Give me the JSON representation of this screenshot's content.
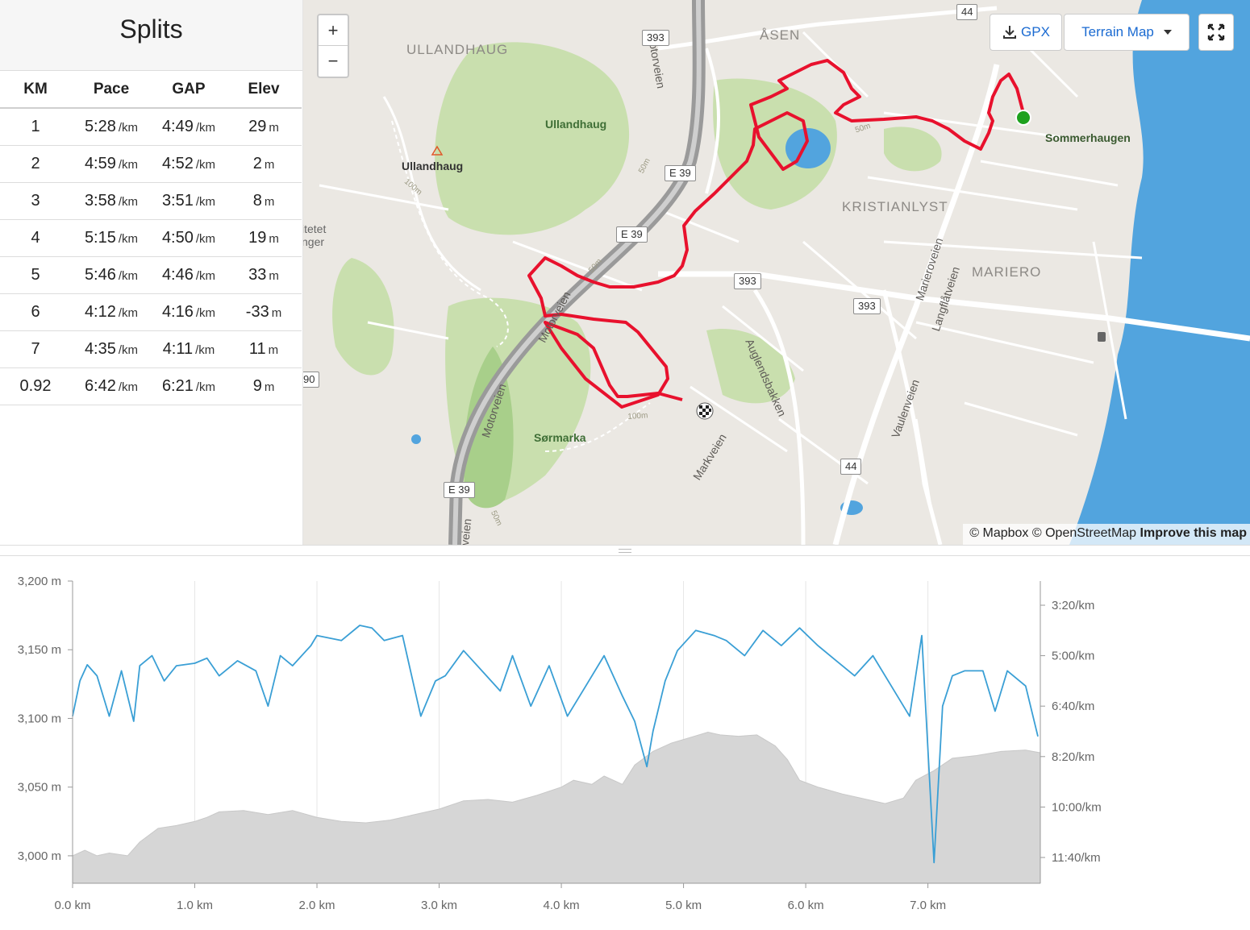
{
  "splits": {
    "title": "Splits",
    "headers": [
      "KM",
      "Pace",
      "GAP",
      "Elev"
    ],
    "rows": [
      {
        "km": "1",
        "pace": "5:28",
        "gap": "4:49",
        "elev": "29"
      },
      {
        "km": "2",
        "pace": "4:59",
        "gap": "4:52",
        "elev": "2"
      },
      {
        "km": "3",
        "pace": "3:58",
        "gap": "3:51",
        "elev": "8"
      },
      {
        "km": "4",
        "pace": "5:15",
        "gap": "4:50",
        "elev": "19"
      },
      {
        "km": "5",
        "pace": "5:46",
        "gap": "4:46",
        "elev": "33"
      },
      {
        "km": "6",
        "pace": "4:12",
        "gap": "4:16",
        "elev": "-33"
      },
      {
        "km": "7",
        "pace": "4:35",
        "gap": "4:11",
        "elev": "11"
      },
      {
        "km": "0.92",
        "pace": "6:42",
        "gap": "6:21",
        "elev": "9"
      }
    ],
    "pace_unit": "/km",
    "elev_unit": "m"
  },
  "map": {
    "zoom_in": "+",
    "zoom_out": "−",
    "gpx_label": "GPX",
    "style_label": "Terrain Map",
    "fullscreen_icon": "fullscreen-icon",
    "download_icon": "download-icon",
    "labels": {
      "ullandhaug_area": "ULLANDHAUG",
      "asen": "ÅSEN",
      "kristianlyst": "KRISTIANLYST",
      "mariero": "MARIERO",
      "ullandhaug_park": "Ullandhaug",
      "ullandhaug_peak": "Ullandhaug",
      "sormarka": "Sørmarka",
      "sommerhaugen": "Sommerhaugen",
      "motorveien1": "Motorveien",
      "motorveien2": "Motorveien",
      "motorveien3": "Motorveien",
      "auglendsbakken": "Auglendsbakken",
      "markveien": "Markveien",
      "marieroveien": "Marieroveien",
      "langflatveien": "Langflåtveien",
      "vaulenveien": "Vaulenveien",
      "veien": "veien",
      "itetet": "itetet",
      "nger": "nger",
      "c50a": "50m",
      "c50b": "50m",
      "c50c": "50m",
      "c50d": "50m",
      "c100a": "100m",
      "c100b": "100m"
    },
    "shields": {
      "s393a": "393",
      "s393b": "393",
      "s393c": "393",
      "s44a": "44",
      "s44b": "44",
      "e39a": "E 39",
      "e39b": "E 39",
      "e39c": "E 39",
      "s90": "90"
    },
    "attribution": {
      "mapbox": "© Mapbox",
      "osm": "© OpenStreetMap",
      "improve": "Improve this map"
    },
    "colors": {
      "route": "#e8112d",
      "start": "#1ea11e",
      "water": "#52a4de",
      "park": "#c9dfae",
      "land": "#ebe8e3"
    }
  },
  "chart_data": {
    "type": "area",
    "xlabel": "",
    "x_ticks": [
      "0.0 km",
      "1.0 km",
      "2.0 km",
      "3.0 km",
      "4.0 km",
      "5.0 km",
      "6.0 km",
      "7.0 km"
    ],
    "y_left_ticks": [
      "3,200 m",
      "3,150 m",
      "3,100 m",
      "3,050 m",
      "3,000 m"
    ],
    "y_right_ticks": [
      "3:20/km",
      "5:00/km",
      "6:40/km",
      "8:20/km",
      "10:00/km",
      "11:40/km"
    ],
    "xlim": [
      0,
      7.92
    ],
    "ylim_left": [
      2980,
      3200
    ],
    "pace_axis_seconds": [
      200,
      300,
      400,
      500,
      600,
      700
    ],
    "series": [
      {
        "axis": "left",
        "color": "#d6d6d6",
        "x": [
          0,
          0.1,
          0.2,
          0.3,
          0.45,
          0.55,
          0.7,
          0.85,
          1.0,
          1.1,
          1.2,
          1.4,
          1.6,
          1.8,
          2.0,
          2.2,
          2.4,
          2.6,
          2.8,
          3.0,
          3.2,
          3.4,
          3.6,
          3.8,
          4.0,
          4.1,
          4.25,
          4.35,
          4.5,
          4.6,
          4.75,
          4.9,
          5.05,
          5.2,
          5.3,
          5.45,
          5.6,
          5.75,
          5.85,
          5.95,
          6.1,
          6.3,
          6.5,
          6.65,
          6.8,
          6.9,
          7.05,
          7.2,
          7.4,
          7.6,
          7.8,
          7.92
        ],
        "values": [
          3000,
          3004,
          3000,
          3002,
          3000,
          3010,
          3020,
          3022,
          3025,
          3028,
          3032,
          3033,
          3030,
          3033,
          3028,
          3025,
          3024,
          3026,
          3030,
          3034,
          3040,
          3041,
          3039,
          3044,
          3050,
          3055,
          3052,
          3058,
          3052,
          3066,
          3076,
          3082,
          3086,
          3090,
          3088,
          3087,
          3088,
          3080,
          3070,
          3055,
          3050,
          3045,
          3041,
          3038,
          3042,
          3055,
          3062,
          3071,
          3073,
          3076,
          3077,
          3075
        ]
      },
      {
        "axis": "right",
        "color": "#3a9fd5",
        "unit": "sec/km",
        "x": [
          0,
          0.06,
          0.12,
          0.2,
          0.3,
          0.4,
          0.5,
          0.55,
          0.65,
          0.75,
          0.85,
          1.0,
          1.1,
          1.2,
          1.35,
          1.5,
          1.6,
          1.7,
          1.8,
          1.95,
          2.0,
          2.2,
          2.35,
          2.45,
          2.55,
          2.7,
          2.85,
          2.97,
          3.05,
          3.2,
          3.35,
          3.5,
          3.6,
          3.75,
          3.9,
          4.05,
          4.2,
          4.35,
          4.5,
          4.6,
          4.7,
          4.75,
          4.85,
          4.95,
          5.1,
          5.25,
          5.35,
          5.5,
          5.65,
          5.8,
          5.95,
          6.1,
          6.25,
          6.4,
          6.55,
          6.7,
          6.85,
          6.95,
          7.05,
          7.12,
          7.2,
          7.3,
          7.45,
          7.55,
          7.65,
          7.8,
          7.9
        ],
        "values": [
          420,
          350,
          318,
          340,
          420,
          330,
          430,
          320,
          300,
          350,
          320,
          315,
          305,
          340,
          310,
          330,
          400,
          300,
          320,
          280,
          260,
          270,
          240,
          245,
          270,
          260,
          420,
          350,
          340,
          290,
          330,
          370,
          300,
          400,
          320,
          420,
          360,
          300,
          380,
          430,
          520,
          450,
          350,
          290,
          250,
          260,
          270,
          300,
          250,
          280,
          245,
          280,
          310,
          340,
          300,
          360,
          420,
          260,
          710,
          400,
          340,
          330,
          330,
          410,
          330,
          360,
          460
        ]
      }
    ]
  }
}
